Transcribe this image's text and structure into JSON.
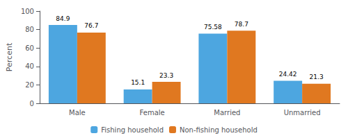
{
  "chart_data": {
    "type": "bar",
    "categories": [
      "Male",
      "Female",
      "Married",
      "Unmarried"
    ],
    "series": [
      {
        "name": "Fishing household",
        "color": "#4da6e0",
        "values": [
          84.9,
          15.1,
          75.58,
          24.42
        ]
      },
      {
        "name": "Non-fishing household",
        "color": "#e07820",
        "values": [
          76.7,
          23.3,
          78.7,
          21.3
        ]
      }
    ],
    "ylabel": "Percent",
    "ylim": [
      0,
      100
    ],
    "yticks": [
      0,
      20,
      40,
      60,
      80,
      100
    ],
    "grid": false,
    "legend": "bottom",
    "data_labels": true
  }
}
